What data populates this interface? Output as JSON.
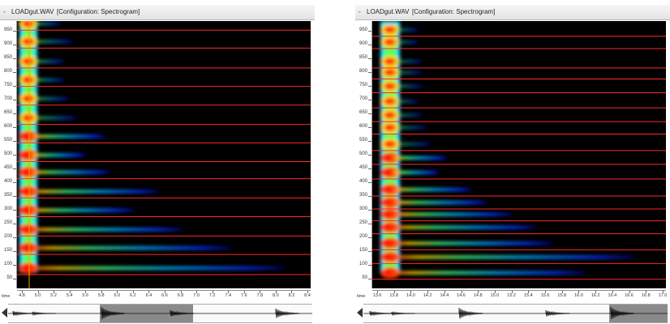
{
  "panels": [
    {
      "id": "left",
      "title_dash": "-",
      "file_name": "LOADgut.WAV",
      "configuration": "[Configuration: Spectrogram]",
      "y_unit": "Hz",
      "y_ticks": [
        "950",
        "900",
        "850",
        "800",
        "750",
        "700",
        "650",
        "600",
        "550",
        "500",
        "450",
        "400",
        "350",
        "300",
        "250",
        "200",
        "150",
        "100",
        "50"
      ],
      "x_unit": "time",
      "x_ticks": [
        "4.8",
        "5.0",
        "5.2",
        "5.4",
        "5.6",
        "5.8",
        "6.0",
        "6.2",
        "6.4",
        "6.6",
        "6.8",
        "7.0",
        "7.2",
        "7.4",
        "7.6",
        "7.8",
        "8.0",
        "8.2",
        "8.4"
      ],
      "harmonic_lines_hz": [
        65,
        138,
        205,
        275,
        343,
        413,
        475,
        543,
        610,
        680,
        748,
        815,
        887,
        952
      ],
      "cursor_time": 5.0
    },
    {
      "id": "right",
      "title_dash": "-",
      "file_name": "LOADgut.WAV",
      "configuration": "[Configuration: Spectrogram]",
      "y_unit": "Hz",
      "y_ticks": [
        "950",
        "900",
        "850",
        "800",
        "750",
        "700",
        "650",
        "600",
        "550",
        "500",
        "450",
        "400",
        "350",
        "300",
        "250",
        "200",
        "150",
        "100",
        "50"
      ],
      "x_unit": "time",
      "x_ticks": [
        "13.6",
        "13.8",
        "14.0",
        "14.2",
        "14.4",
        "14.6",
        "14.8",
        "15.0",
        "15.2",
        "15.4",
        "15.6",
        "15.8",
        "16.0",
        "16.2",
        "16.4",
        "16.6",
        "16.8",
        "17.0"
      ],
      "harmonic_lines_hz": [
        48,
        105,
        155,
        213,
        260,
        303,
        350,
        412,
        465,
        515,
        575,
        620,
        670,
        725,
        775,
        815,
        885,
        930
      ],
      "cursor_time": null
    }
  ],
  "colors": {
    "background": "#000000",
    "harmonic_line": "#ff2a2a",
    "cursor": "#ff9900",
    "overview_selection": "#8a8a8a"
  }
}
